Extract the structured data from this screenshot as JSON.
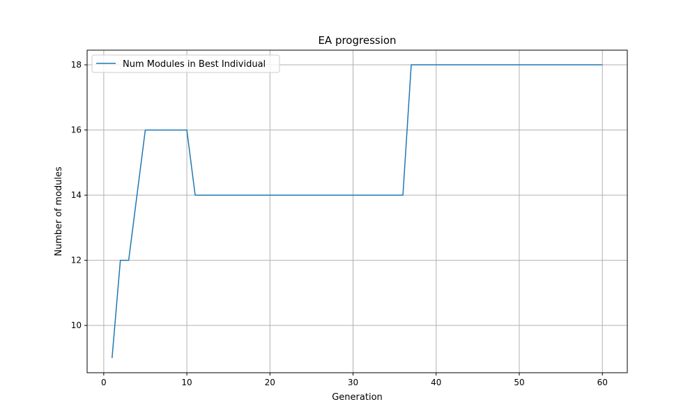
{
  "chart_data": {
    "type": "line",
    "title": "EA progression",
    "xlabel": "Generation",
    "ylabel": "Number of modules",
    "xlim": [
      -2,
      63
    ],
    "ylim": [
      8.55,
      18.45
    ],
    "xticks": [
      0,
      10,
      20,
      30,
      40,
      50,
      60
    ],
    "yticks": [
      10,
      12,
      14,
      16,
      18
    ],
    "grid": true,
    "legend_position": "top-left",
    "series": [
      {
        "name": "Num Modules in Best Individual",
        "color": "#1f77b4",
        "x": [
          1,
          2,
          3,
          4,
          5,
          6,
          7,
          8,
          9,
          10,
          11,
          12,
          13,
          14,
          15,
          16,
          17,
          18,
          19,
          20,
          21,
          22,
          23,
          24,
          25,
          26,
          27,
          28,
          29,
          30,
          31,
          32,
          33,
          34,
          35,
          36,
          37,
          38,
          39,
          40,
          41,
          42,
          43,
          44,
          45,
          46,
          47,
          48,
          49,
          50,
          51,
          52,
          53,
          54,
          55,
          56,
          57,
          58,
          59,
          60
        ],
        "y": [
          9,
          12,
          12,
          14,
          16,
          16,
          16,
          16,
          16,
          16,
          14,
          14,
          14,
          14,
          14,
          14,
          14,
          14,
          14,
          14,
          14,
          14,
          14,
          14,
          14,
          14,
          14,
          14,
          14,
          14,
          14,
          14,
          14,
          14,
          14,
          14,
          18,
          18,
          18,
          18,
          18,
          18,
          18,
          18,
          18,
          18,
          18,
          18,
          18,
          18,
          18,
          18,
          18,
          18,
          18,
          18,
          18,
          18,
          18,
          18
        ]
      }
    ]
  }
}
